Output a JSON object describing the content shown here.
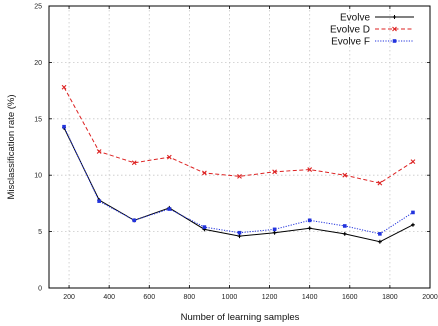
{
  "chart_data": {
    "type": "line",
    "title": "",
    "xlabel": "Number of learning samples",
    "ylabel": "Misclassification rate (%)",
    "xlim": [
      100,
      2000
    ],
    "ylim": [
      0,
      25
    ],
    "x_ticks": [
      200,
      400,
      600,
      800,
      1000,
      1200,
      1400,
      1600,
      1800,
      2000
    ],
    "y_ticks": [
      0,
      5,
      10,
      15,
      20,
      25
    ],
    "grid": true,
    "legend_position": "top-right",
    "x": [
      175,
      350,
      525,
      700,
      875,
      1050,
      1225,
      1400,
      1575,
      1750,
      1915
    ],
    "series": [
      {
        "name": "Evolve",
        "color": "#000000",
        "line_style": "solid",
        "marker": "plus",
        "values": [
          14.2,
          7.8,
          6.0,
          7.1,
          5.2,
          4.6,
          4.9,
          5.3,
          4.8,
          4.1,
          5.6
        ]
      },
      {
        "name": "Evolve D",
        "color": "#dd2222",
        "line_style": "dashed",
        "marker": "cross",
        "values": [
          17.8,
          12.1,
          11.1,
          11.6,
          10.2,
          9.9,
          10.3,
          10.5,
          10.0,
          9.3,
          11.2
        ]
      },
      {
        "name": "Evolve F",
        "color": "#2233dd",
        "line_style": "dotted",
        "marker": "square",
        "values": [
          14.3,
          7.7,
          6.0,
          7.0,
          5.4,
          4.9,
          5.2,
          6.0,
          5.5,
          4.8,
          6.7
        ]
      }
    ]
  }
}
